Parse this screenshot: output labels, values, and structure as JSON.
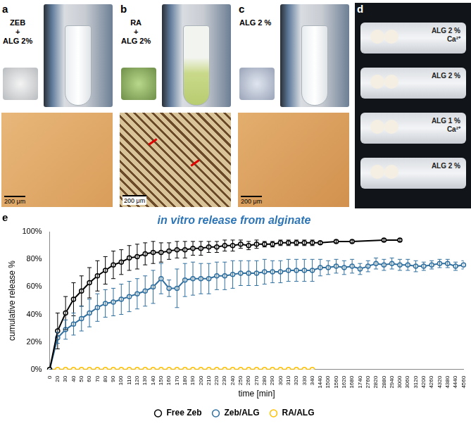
{
  "panels": [
    {
      "letter": "a",
      "label": [
        "ZEB",
        "+",
        "ALG 2%"
      ],
      "scale_bar": "200 μm"
    },
    {
      "letter": "b",
      "label": [
        "RA",
        "+",
        "ALG 2%"
      ],
      "scale_bar": "200 μm"
    },
    {
      "letter": "c",
      "label": [
        "ALG 2 %"
      ],
      "scale_bar": "200 μm"
    },
    {
      "letter": "d",
      "tubes": [
        [
          "ALG 2 %",
          "Ca²⁺"
        ],
        [
          "ALG 2 %"
        ],
        [
          "ALG 1 %",
          "Ca²⁺"
        ],
        [
          "ALG 2 %"
        ]
      ]
    }
  ],
  "chart_data": {
    "letter": "e",
    "type": "line",
    "title": "in vitro release from alginate",
    "x_label": "time [min]",
    "y_label": "cumulative release %",
    "categories": [
      0,
      20,
      30,
      40,
      50,
      60,
      70,
      80,
      90,
      100,
      110,
      120,
      130,
      140,
      150,
      160,
      170,
      180,
      190,
      200,
      210,
      220,
      230,
      240,
      250,
      260,
      270,
      280,
      290,
      300,
      310,
      320,
      330,
      340,
      1440,
      1500,
      1560,
      1620,
      1680,
      1740,
      2760,
      2820,
      2880,
      2940,
      3000,
      3060,
      3120,
      4200,
      4260,
      4320,
      4380,
      4440,
      4560
    ],
    "series": [
      {
        "name": "Free Zeb",
        "color": "#000000",
        "marker": "circle",
        "values": [
          0,
          28,
          41,
          51,
          57,
          63,
          68,
          72,
          76,
          78,
          81,
          82,
          84,
          85,
          85,
          86,
          87,
          87,
          88,
          88,
          89,
          89,
          90,
          90,
          91,
          90,
          91,
          91,
          91,
          92,
          92,
          92,
          92,
          92,
          92,
          null,
          93,
          null,
          93,
          null,
          null,
          null,
          94,
          null,
          94,
          null,
          null,
          null,
          null,
          null,
          null,
          null,
          null
        ],
        "errors": [
          0,
          13,
          12,
          12,
          11,
          11,
          11,
          10,
          10,
          9,
          9,
          9,
          8,
          8,
          7,
          6,
          6,
          6,
          5,
          5,
          4,
          4,
          4,
          4,
          3,
          3,
          3,
          2,
          2,
          2,
          2,
          2,
          2,
          2,
          1,
          null,
          1,
          null,
          1,
          null,
          null,
          null,
          1,
          null,
          1,
          null,
          null,
          null,
          null,
          null,
          null,
          null,
          null
        ]
      },
      {
        "name": "Zeb/ALG",
        "color": "#31709f",
        "marker": "circle",
        "values": [
          0,
          23,
          29,
          33,
          37,
          41,
          45,
          48,
          49,
          51,
          53,
          55,
          57,
          60,
          66,
          59,
          59,
          65,
          66,
          66,
          66,
          68,
          68,
          69,
          70,
          70,
          70,
          71,
          71,
          71,
          72,
          72,
          72,
          72,
          74,
          74,
          75,
          74,
          75,
          73,
          75,
          77,
          76,
          77,
          76,
          76,
          75,
          75,
          76,
          77,
          77,
          75,
          76
        ],
        "errors": [
          0,
          4,
          7,
          8,
          9,
          10,
          10,
          10,
          10,
          11,
          11,
          11,
          11,
          12,
          11,
          6,
          14,
          12,
          12,
          11,
          11,
          10,
          10,
          10,
          9,
          9,
          9,
          9,
          8,
          8,
          8,
          8,
          8,
          8,
          6,
          5,
          5,
          5,
          5,
          4,
          4,
          4,
          4,
          4,
          4,
          4,
          4,
          3,
          3,
          3,
          3,
          3,
          3
        ]
      },
      {
        "name": "RA/ALG",
        "color": "#ffc000",
        "marker": "circle",
        "values": [
          0,
          0,
          0,
          0,
          0,
          0,
          0,
          0,
          0,
          0,
          0,
          0,
          0,
          0,
          0,
          0,
          0,
          0,
          0,
          0,
          0,
          0,
          0,
          0,
          0,
          0,
          0,
          0,
          0,
          0,
          0,
          0,
          0,
          0,
          null,
          null,
          null,
          null,
          null,
          null,
          null,
          null,
          null,
          null,
          null,
          null,
          null,
          null,
          null,
          null,
          null,
          null,
          null
        ]
      }
    ],
    "ylim": [
      0,
      100
    ],
    "yticks": [
      {
        "value": 0,
        "label": "0%"
      },
      {
        "value": 20,
        "label": "20%"
      },
      {
        "value": 40,
        "label": "40%"
      },
      {
        "value": 60,
        "label": "60%"
      },
      {
        "value": 80,
        "label": "80%"
      },
      {
        "value": 100,
        "label": "100%"
      }
    ],
    "grid": false,
    "legend": "bottom"
  }
}
